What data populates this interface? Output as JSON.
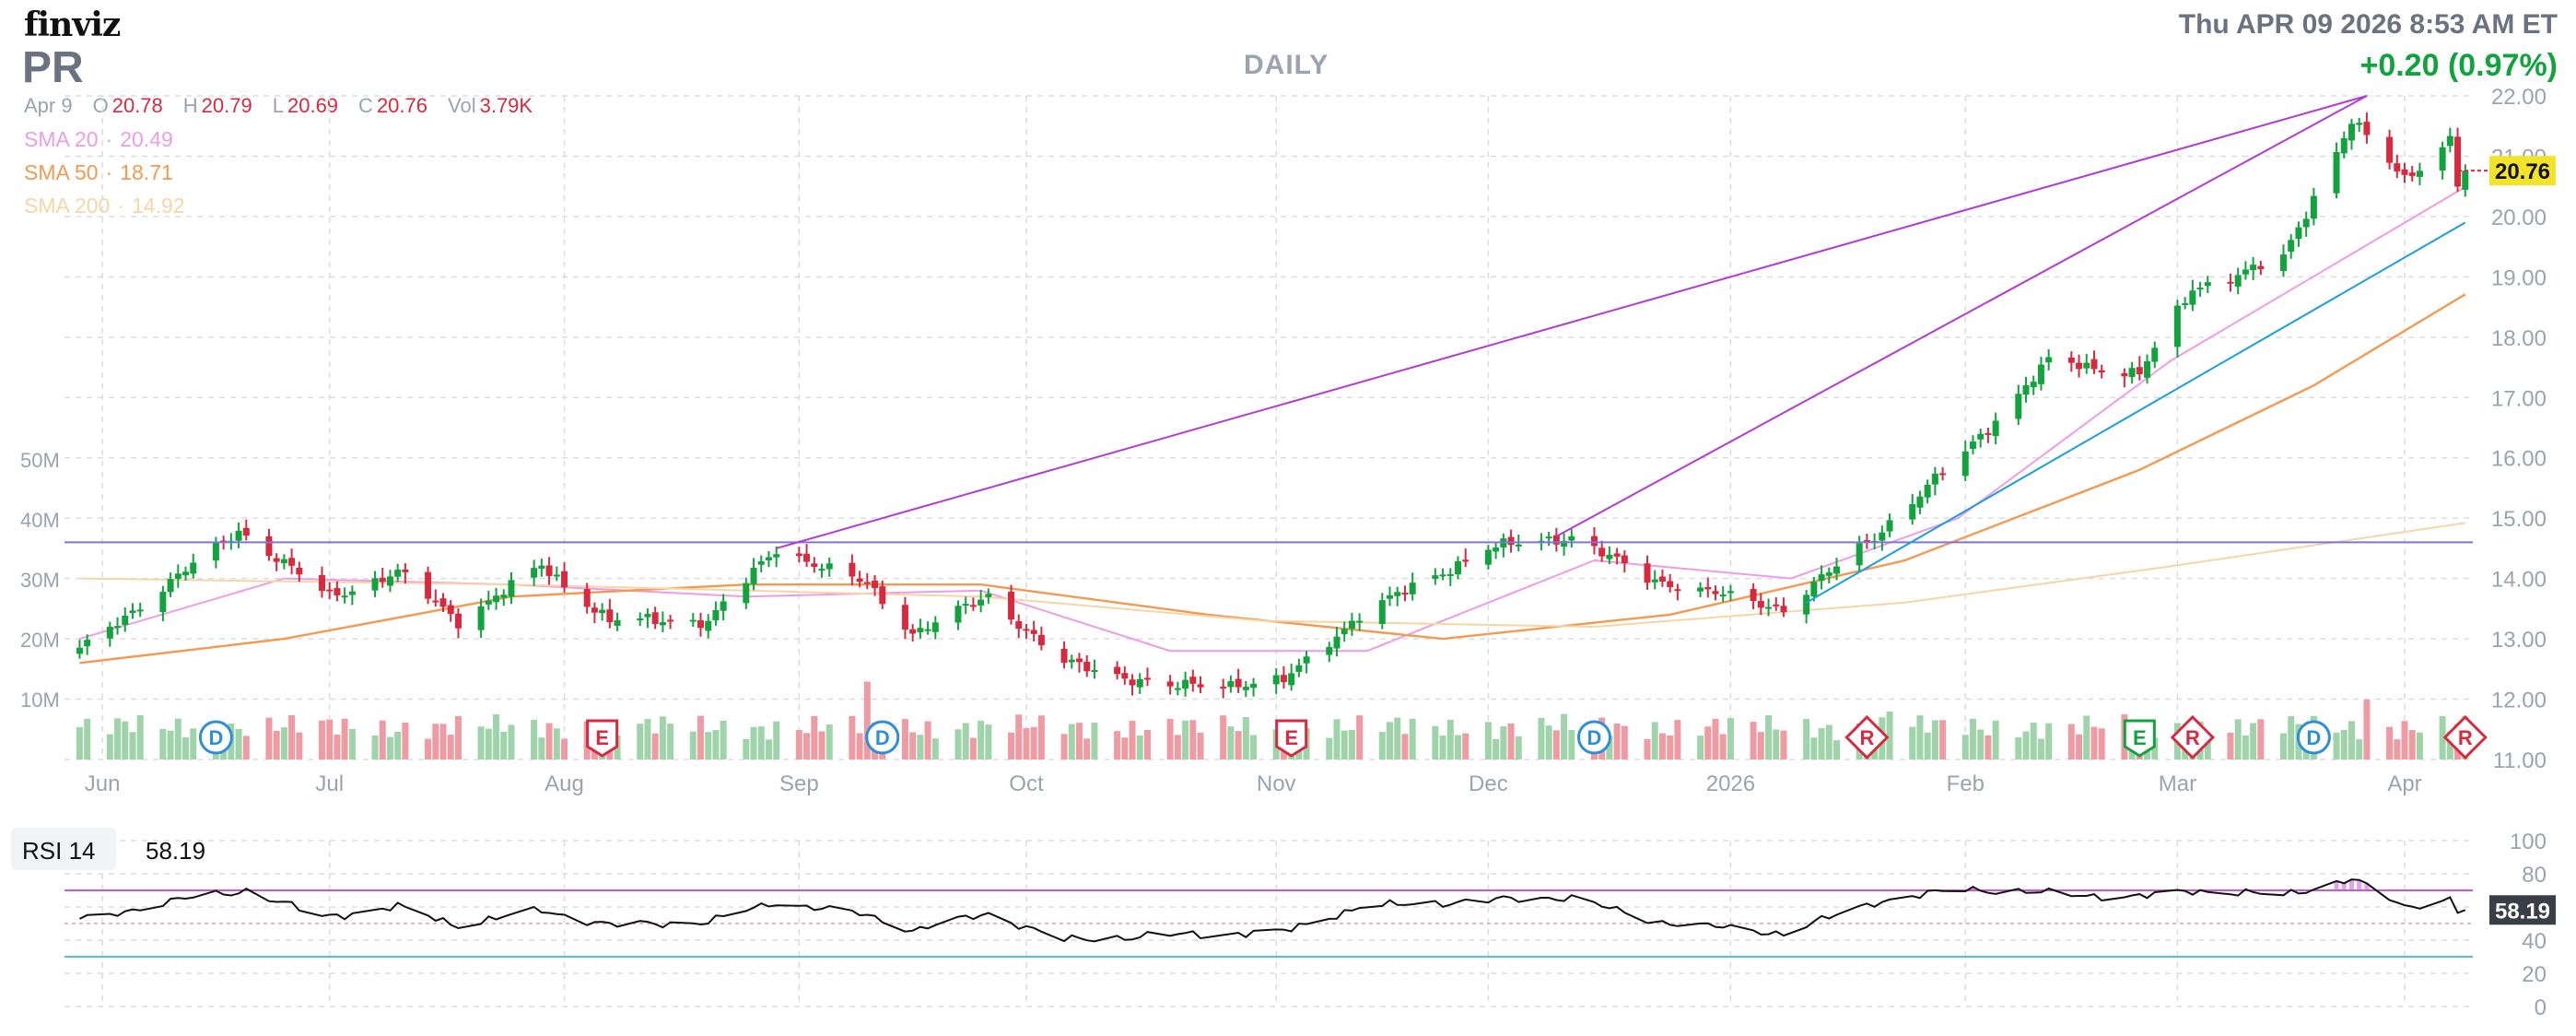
{
  "header": {
    "logo": "finviz",
    "ticker": "PR",
    "timeframe": "DAILY",
    "datetime": "Thu APR 09 2026 8:53 AM ET",
    "change": "+0.20 (0.97%)"
  },
  "ohlc": {
    "date": "Apr 9",
    "open_label": "O",
    "open": "20.78",
    "high_label": "H",
    "high": "20.79",
    "low_label": "L",
    "low": "20.69",
    "close_label": "C",
    "close": "20.76",
    "vol_label": "Vol",
    "vol": "3.79K"
  },
  "sma": [
    {
      "label": "SMA 20",
      "value": "20.49",
      "color": "#ee9ce6"
    },
    {
      "label": "SMA 50",
      "value": "18.71",
      "color": "#f39a52"
    },
    {
      "label": "SMA 200",
      "value": "14.92",
      "color": "#f6d5a6"
    }
  ],
  "colors": {
    "up": "#13a33e",
    "down": "#d72a3f",
    "up_volume": "#9fd4aa",
    "down_volume": "#ef9ba4",
    "trendline": "#b23bd3",
    "support": "#1a9fdc",
    "horizontal": "#7f74d8",
    "rsi_line": "#111111",
    "rsi_upper": "#cc58d6",
    "rsi_lower": "#4fc3dd",
    "price_tag": "#f4e32b",
    "rsi_tag": "#3a3f47"
  },
  "chart_data": [
    {
      "type": "candlestick",
      "title": "PR",
      "ylim": [
        11,
        22
      ],
      "y_ticks": [
        "11.00",
        "12.00",
        "13.00",
        "14.00",
        "15.00",
        "16.00",
        "17.00",
        "18.00",
        "19.00",
        "20.00",
        "21.00",
        "22.00"
      ],
      "x_tick_labels": [
        "Jun",
        "Jul",
        "Aug",
        "Sep",
        "Oct",
        "Nov",
        "Dec",
        "2026",
        "Feb",
        "Mar",
        "Apr"
      ],
      "last_price": "20.76",
      "key_prices": [
        {
          "date": "2025-05-29",
          "close": 12.8
        },
        {
          "date": "2025-06-19",
          "close": 14.8
        },
        {
          "date": "2025-07-01",
          "close": 13.7
        },
        {
          "date": "2025-07-10",
          "close": 14.1
        },
        {
          "date": "2025-07-18",
          "close": 13.3
        },
        {
          "date": "2025-07-29",
          "close": 14.2
        },
        {
          "date": "2025-08-07",
          "close": 13.3
        },
        {
          "date": "2025-08-20",
          "close": 13.3
        },
        {
          "date": "2025-08-29",
          "close": 14.5
        },
        {
          "date": "2025-09-10",
          "close": 13.9
        },
        {
          "date": "2025-09-16",
          "close": 13.1
        },
        {
          "date": "2025-09-26",
          "close": 13.7
        },
        {
          "date": "2025-10-06",
          "close": 12.6
        },
        {
          "date": "2025-10-20",
          "close": 12.2
        },
        {
          "date": "2025-11-04",
          "close": 12.3
        },
        {
          "date": "2025-11-14",
          "close": 13.4
        },
        {
          "date": "2025-12-01",
          "close": 14.5
        },
        {
          "date": "2025-12-12",
          "close": 14.7
        },
        {
          "date": "2025-12-22",
          "close": 14.0
        },
        {
          "date": "2026-01-09",
          "close": 13.5
        },
        {
          "date": "2026-01-21",
          "close": 14.7
        },
        {
          "date": "2026-02-02",
          "close": 16.1
        },
        {
          "date": "2026-02-13",
          "close": 17.6
        },
        {
          "date": "2026-02-25",
          "close": 17.4
        },
        {
          "date": "2026-03-04",
          "close": 18.8
        },
        {
          "date": "2026-03-16",
          "close": 19.3
        },
        {
          "date": "2026-03-25",
          "close": 21.6
        },
        {
          "date": "2026-04-01",
          "close": 20.6
        },
        {
          "date": "2026-04-07",
          "close": 21.3
        },
        {
          "date": "2026-04-08",
          "close": 20.56
        },
        {
          "date": "2026-04-09",
          "close": 20.76
        }
      ],
      "volume": {
        "ticks": [
          "10M",
          "20M",
          "30M",
          "40M",
          "50M"
        ],
        "note_values_millions": {
          "2025-09-10": 13,
          "2025-11-06": 6,
          "2026-01-23": 8,
          "2026-03-27": 10
        }
      },
      "sma_series": [
        {
          "name": "SMA 20",
          "points": [
            [
              "2025-05-29",
              13.0
            ],
            [
              "2025-06-25",
              14.0
            ],
            [
              "2025-07-25",
              13.9
            ],
            [
              "2025-08-25",
              13.7
            ],
            [
              "2025-09-25",
              13.8
            ],
            [
              "2025-10-20",
              12.8
            ],
            [
              "2025-11-15",
              12.8
            ],
            [
              "2025-12-15",
              14.3
            ],
            [
              "2026-01-10",
              14.0
            ],
            [
              "2026-02-01",
              15.0
            ],
            [
              "2026-03-01",
              17.6
            ],
            [
              "2026-04-09",
              20.49
            ]
          ]
        },
        {
          "name": "SMA 50",
          "points": [
            [
              "2025-05-29",
              12.6
            ],
            [
              "2025-06-25",
              13.0
            ],
            [
              "2025-07-25",
              13.7
            ],
            [
              "2025-08-25",
              13.9
            ],
            [
              "2025-09-25",
              13.9
            ],
            [
              "2025-10-25",
              13.4
            ],
            [
              "2025-11-25",
              13.0
            ],
            [
              "2025-12-25",
              13.4
            ],
            [
              "2026-01-25",
              14.3
            ],
            [
              "2026-02-25",
              15.8
            ],
            [
              "2026-03-20",
              17.2
            ],
            [
              "2026-04-09",
              18.71
            ]
          ]
        },
        {
          "name": "SMA 200",
          "points": [
            [
              "2025-05-29",
              14.0
            ],
            [
              "2025-07-25",
              13.9
            ],
            [
              "2025-09-25",
              13.7
            ],
            [
              "2025-11-01",
              13.3
            ],
            [
              "2025-12-15",
              13.2
            ],
            [
              "2026-01-25",
              13.6
            ],
            [
              "2026-03-01",
              14.2
            ],
            [
              "2026-04-09",
              14.92
            ]
          ]
        }
      ],
      "annotations": [
        {
          "type": "horizontal_line",
          "price": 14.6
        },
        {
          "type": "trendline",
          "from": [
            "2025-08-29",
            14.5
          ],
          "to": [
            "2026-03-27",
            22.0
          ]
        },
        {
          "type": "trendline",
          "from": [
            "2025-12-10",
            14.7
          ],
          "to": [
            "2026-03-27",
            22.0
          ]
        },
        {
          "type": "trendline",
          "from": [
            "2026-01-12",
            13.6
          ],
          "to": [
            "2026-04-09",
            19.9
          ]
        }
      ],
      "events": [
        {
          "date": "2025-06-16",
          "label": "D"
        },
        {
          "date": "2025-08-06",
          "label": "E"
        },
        {
          "date": "2025-09-12",
          "label": "D"
        },
        {
          "date": "2025-11-05",
          "label": "E"
        },
        {
          "date": "2025-12-15",
          "label": "D"
        },
        {
          "date": "2026-01-20",
          "label": "R"
        },
        {
          "date": "2026-02-25",
          "label": "E"
        },
        {
          "date": "2026-03-04",
          "label": "R"
        },
        {
          "date": "2026-03-20",
          "label": "D"
        },
        {
          "date": "2026-04-09",
          "label": "R"
        }
      ]
    },
    {
      "type": "line",
      "title": "RSI 14",
      "value": "58.19",
      "ylim": [
        0,
        100
      ],
      "y_ticks": [
        "0",
        "20",
        "40",
        "60",
        "80",
        "100"
      ],
      "upper_band": 70,
      "lower_band": 30,
      "points": [
        [
          "2025-05-29",
          52
        ],
        [
          "2025-06-12",
          65
        ],
        [
          "2025-06-20",
          70
        ],
        [
          "2025-06-30",
          54
        ],
        [
          "2025-07-10",
          60
        ],
        [
          "2025-07-18",
          49
        ],
        [
          "2025-07-29",
          58
        ],
        [
          "2025-08-07",
          49
        ],
        [
          "2025-08-20",
          51
        ],
        [
          "2025-08-29",
          63
        ],
        [
          "2025-09-10",
          55
        ],
        [
          "2025-09-16",
          46
        ],
        [
          "2025-09-26",
          56
        ],
        [
          "2025-10-06",
          40
        ],
        [
          "2025-10-20",
          43
        ],
        [
          "2025-11-04",
          45
        ],
        [
          "2025-11-14",
          60
        ],
        [
          "2025-12-01",
          64
        ],
        [
          "2025-12-12",
          66
        ],
        [
          "2025-12-22",
          52
        ],
        [
          "2026-01-09",
          44
        ],
        [
          "2026-01-21",
          63
        ],
        [
          "2026-02-02",
          71
        ],
        [
          "2026-02-13",
          68
        ],
        [
          "2026-02-25",
          66
        ],
        [
          "2026-03-04",
          70
        ],
        [
          "2026-03-16",
          67
        ],
        [
          "2026-03-25",
          77
        ],
        [
          "2026-04-01",
          60
        ],
        [
          "2026-04-07",
          65
        ],
        [
          "2026-04-08",
          57
        ],
        [
          "2026-04-09",
          58.19
        ]
      ]
    }
  ]
}
